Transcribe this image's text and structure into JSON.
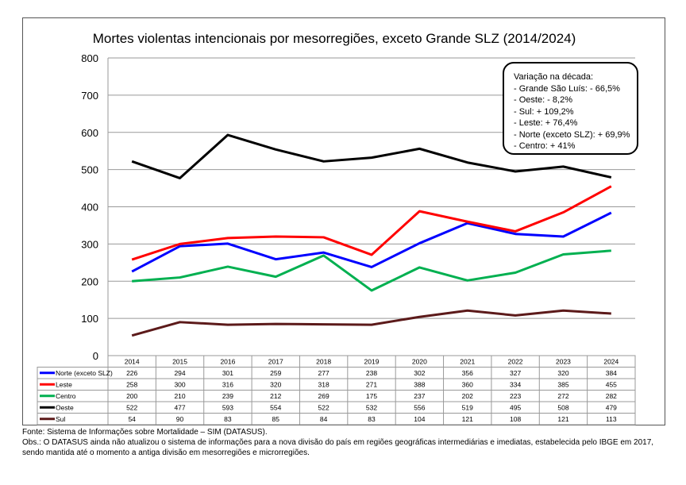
{
  "chart_data": {
    "type": "line",
    "title": "Mortes violentas intencionais por mesorregiões, exceto Grande SLZ (2014/2024)",
    "xlabel": "",
    "ylabel": "",
    "ylim": [
      0,
      800
    ],
    "yticks": [
      "0",
      "100",
      "200",
      "300",
      "400",
      "500",
      "600",
      "700",
      "800"
    ],
    "grid": true,
    "legend": "table-below",
    "categories": [
      "2014",
      "2015",
      "2016",
      "2017",
      "2018",
      "2019",
      "2020",
      "2021",
      "2022",
      "2023",
      "2024"
    ],
    "series": [
      {
        "name": "Norte (exceto SLZ)",
        "color": "#0000ff",
        "values": [
          226,
          294,
          301,
          259,
          277,
          238,
          302,
          356,
          327,
          320,
          384
        ]
      },
      {
        "name": "Leste",
        "color": "#ff0000",
        "values": [
          258,
          300,
          316,
          320,
          318,
          271,
          388,
          360,
          334,
          385,
          455
        ]
      },
      {
        "name": "Centro",
        "color": "#00b050",
        "values": [
          200,
          210,
          239,
          212,
          269,
          175,
          237,
          202,
          223,
          272,
          282
        ]
      },
      {
        "name": "Oeste",
        "color": "#000000",
        "values": [
          522,
          477,
          593,
          554,
          522,
          532,
          556,
          519,
          495,
          508,
          479
        ]
      },
      {
        "name": "Sul",
        "color": "#5c1a1a",
        "values": [
          54,
          90,
          83,
          85,
          84,
          83,
          104,
          121,
          108,
          121,
          113
        ]
      }
    ],
    "annotation": {
      "title": "Variação na década:",
      "lines": [
        "- Grande São Luís: - 66,5%",
        "- Oeste: - 8,2%",
        "- Sul: + 109,2%",
        "- Leste: + 76,4%",
        "- Norte (exceto SLZ): + 69,9%",
        "- Centro: + 41%"
      ]
    }
  },
  "footer": {
    "source": "Fonte: Sistema de Informações sobre Mortalidade – SIM (DATASUS).",
    "obs": "Obs.: O DATASUS ainda não atualizou o sistema de informações para a nova divisão do país em regiões geográficas intermediárias e imediatas, estabelecida pelo IBGE em 2017, sendo mantida até o momento a antiga divisão em mesorregiões e microrregiões."
  }
}
